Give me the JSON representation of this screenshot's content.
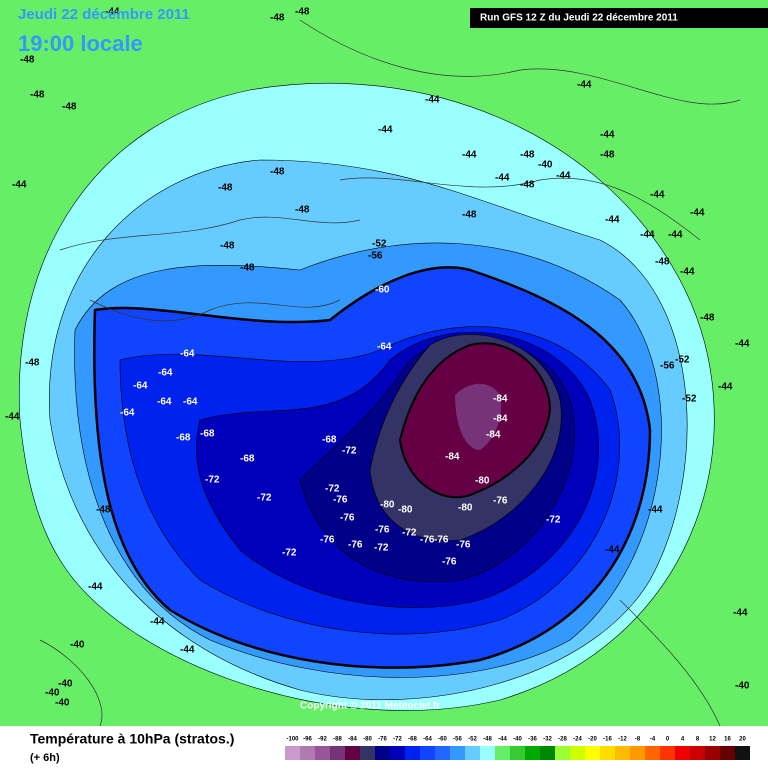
{
  "header": {
    "date": "Jeudi 22 décembre 2011",
    "time": "19:00 locale",
    "run": "Run GFS 12 Z du Jeudi 22 décembre 2011"
  },
  "map": {
    "copyright": "Copyright © 2011 Meteociel.fr",
    "labels": [
      -44,
      -48,
      -48,
      -48,
      -48,
      -48,
      -44,
      -44,
      -44,
      -44,
      -44,
      -44,
      -48,
      -40,
      -48,
      -44,
      -44,
      -48,
      -44,
      -44,
      -44,
      -44,
      -44,
      -48,
      -44,
      -48,
      -44,
      -56,
      -52,
      -44,
      -52,
      -48,
      -48,
      -48,
      -48,
      -48,
      -48,
      -52,
      -56,
      -60,
      -64,
      -64,
      -64,
      -64,
      -64,
      -64,
      -64,
      -68,
      -68,
      -68,
      -68,
      -72,
      -72,
      -72,
      -72,
      -76,
      -76,
      -76,
      -76,
      -72,
      -72,
      -76,
      -80,
      -72,
      -80,
      -76,
      -76,
      -76,
      -76,
      -80,
      -80,
      -76,
      -84,
      -84,
      -84,
      -84,
      -72,
      -44,
      -44,
      -44,
      -40,
      -44,
      -44,
      -44,
      -48,
      -48,
      -44,
      -40,
      -40,
      -40,
      -40
    ]
  },
  "footer": {
    "title": "Température à 10hPa (stratos.)",
    "step": "(+ 6h)",
    "scale": [
      {
        "value": -100,
        "color": "#cc99cc"
      },
      {
        "value": -96,
        "color": "#b07ab0"
      },
      {
        "value": -92,
        "color": "#995599"
      },
      {
        "value": -88,
        "color": "#773377"
      },
      {
        "value": -84,
        "color": "#660044"
      },
      {
        "value": -80,
        "color": "#333366"
      },
      {
        "value": -76,
        "color": "#000088"
      },
      {
        "value": -72,
        "color": "#0000bb"
      },
      {
        "value": -68,
        "color": "#0022ee"
      },
      {
        "value": -64,
        "color": "#1144ff"
      },
      {
        "value": -60,
        "color": "#2266ff"
      },
      {
        "value": -56,
        "color": "#3399ff"
      },
      {
        "value": -52,
        "color": "#66ccff"
      },
      {
        "value": -48,
        "color": "#99ffff"
      },
      {
        "value": -44,
        "color": "#66ee66"
      },
      {
        "value": -40,
        "color": "#33cc33"
      },
      {
        "value": -36,
        "color": "#00aa00"
      },
      {
        "value": -32,
        "color": "#008800"
      },
      {
        "value": -28,
        "color": "#99ff33"
      },
      {
        "value": -24,
        "color": "#ccff00"
      },
      {
        "value": -20,
        "color": "#ffff00"
      },
      {
        "value": -16,
        "color": "#ffdd00"
      },
      {
        "value": -12,
        "color": "#ffbb00"
      },
      {
        "value": -8,
        "color": "#ff9900"
      },
      {
        "value": -4,
        "color": "#ff6600"
      },
      {
        "value": 0,
        "color": "#ff3300"
      },
      {
        "value": 4,
        "color": "#ee0000"
      },
      {
        "value": 8,
        "color": "#cc0000"
      },
      {
        "value": 12,
        "color": "#990000"
      },
      {
        "value": 16,
        "color": "#660000"
      },
      {
        "value": 20,
        "color": "#111111"
      }
    ]
  }
}
